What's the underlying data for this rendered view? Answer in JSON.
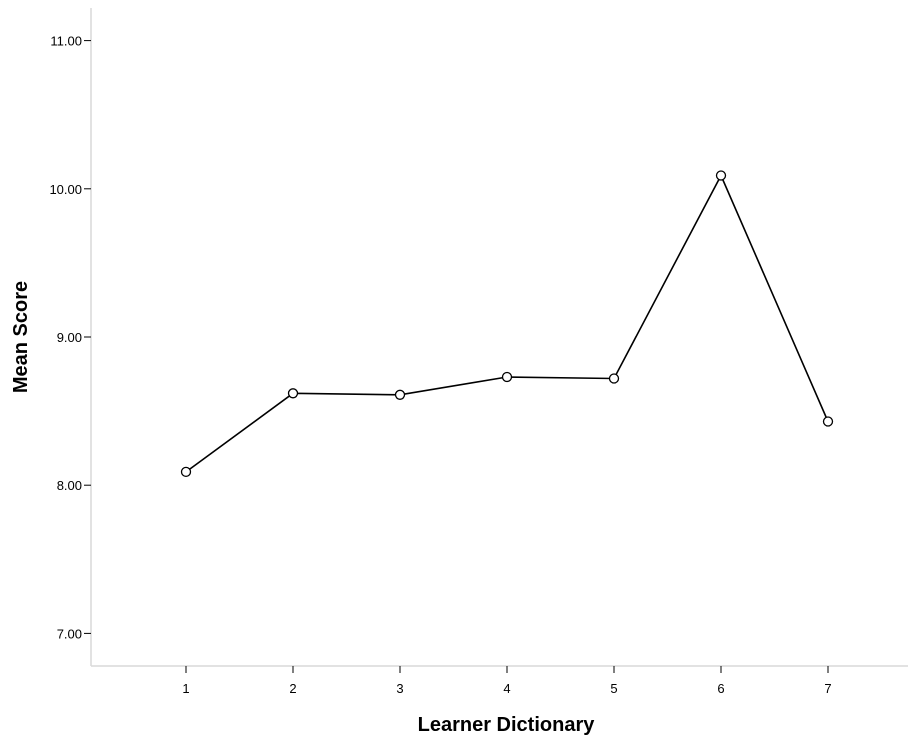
{
  "chart_data": {
    "type": "line",
    "xlabel": "Learner Dictionary",
    "ylabel": "Mean Score",
    "categories": [
      "1",
      "2",
      "3",
      "4",
      "5",
      "6",
      "7"
    ],
    "values": [
      8.09,
      8.62,
      8.61,
      8.73,
      8.72,
      10.09,
      8.43
    ],
    "ylim": [
      6.78,
      11.22
    ],
    "yticks": [
      7.0,
      8.0,
      9.0,
      10.0,
      11.0
    ],
    "ytick_labels": [
      "7.00",
      "8.00",
      "9.00",
      "10.00",
      "11.00"
    ],
    "grid": false,
    "marker": "open-circle",
    "line_color": "#000000",
    "axis_color": "#d9d9d9"
  }
}
